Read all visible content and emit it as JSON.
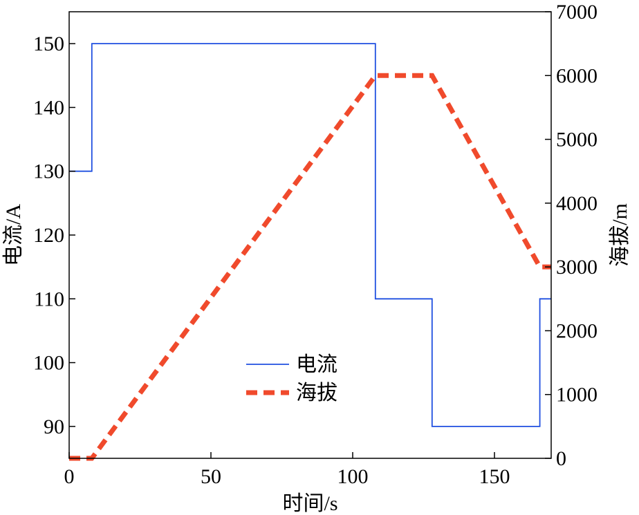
{
  "chart_data": {
    "type": "line",
    "xlabel": "时间/s",
    "ylabel_left": "电流/A",
    "ylabel_right": "海拔/m",
    "xlim": [
      0,
      170
    ],
    "ylim_left": [
      85,
      155
    ],
    "ylim_right": [
      0,
      7000
    ],
    "x_ticks": [
      "0",
      "50",
      "100",
      "150"
    ],
    "y_left_ticks": [
      "90",
      "100",
      "110",
      "120",
      "130",
      "140",
      "150"
    ],
    "y_right_ticks": [
      "0",
      "1000",
      "2000",
      "3000",
      "4000",
      "5000",
      "6000",
      "7000"
    ],
    "grid": false,
    "legend_position": "center",
    "series": [
      {
        "name": "电流",
        "axis": "left",
        "style": "solid",
        "color": "#1f4fe0",
        "x": [
          0,
          8,
          8,
          108,
          108,
          128,
          128,
          166,
          166,
          170
        ],
        "y": [
          130,
          130,
          150,
          150,
          110,
          110,
          90,
          90,
          110,
          110
        ]
      },
      {
        "name": "海拔",
        "axis": "right",
        "style": "dashed",
        "color": "#f04a2c",
        "x": [
          0,
          8,
          108,
          128,
          166,
          170
        ],
        "y": [
          0,
          0,
          6000,
          6000,
          3000,
          3000
        ]
      }
    ]
  }
}
